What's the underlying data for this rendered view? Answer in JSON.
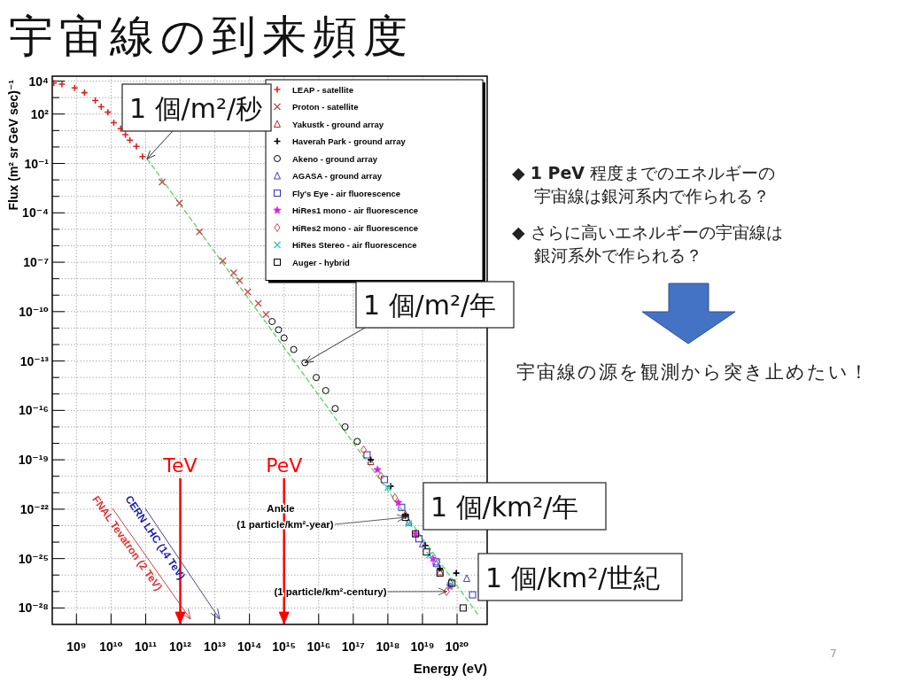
{
  "chart_data": {
    "type": "scatter",
    "title": "宇宙線の到来頻度",
    "xlabel": "Energy (eV)",
    "ylabel": "Flux (m² sr GeV sec)⁻¹",
    "log": "xy",
    "grid": true,
    "legend": "top right",
    "xlim": [
      200000000.0,
      7.4e+20
    ],
    "ylim": [
      1e-29,
      20000.0
    ],
    "xticks": [
      {
        "value": 1000000000.0,
        "label": "10⁹"
      },
      {
        "value": 10000000000.0,
        "label": "10¹⁰"
      },
      {
        "value": 100000000000.0,
        "label": "10¹¹"
      },
      {
        "value": 1000000000000.0,
        "label": "10¹²"
      },
      {
        "value": 10000000000000.0,
        "label": "10¹³"
      },
      {
        "value": 100000000000000.0,
        "label": "10¹⁴"
      },
      {
        "value": 1000000000000000.0,
        "label": "10¹⁵"
      },
      {
        "value": 1e+16,
        "label": "10¹⁶"
      },
      {
        "value": 1e+17,
        "label": "10¹⁷"
      },
      {
        "value": 1e+18,
        "label": "10¹⁸"
      },
      {
        "value": 1e+19,
        "label": "10¹⁹"
      },
      {
        "value": 1e+20,
        "label": "10²⁰"
      }
    ],
    "yticks": [
      {
        "value": 10000.0,
        "label": "10⁴"
      },
      {
        "value": 1000.0,
        "label": null
      },
      {
        "value": 100.0,
        "label": "10²"
      },
      {
        "value": 10.0,
        "label": null
      },
      {
        "value": 1,
        "label": null
      },
      {
        "value": 0.1,
        "label": "10⁻¹"
      },
      {
        "value": 0.01,
        "label": null
      },
      {
        "value": 0.001,
        "label": null
      },
      {
        "value": 0.0001,
        "label": "10⁻⁴"
      },
      {
        "value": 1e-05,
        "label": null
      },
      {
        "value": 1e-06,
        "label": null
      },
      {
        "value": 1e-07,
        "label": "10⁻⁷"
      },
      {
        "value": 1e-08,
        "label": null
      },
      {
        "value": 1e-09,
        "label": null
      },
      {
        "value": 1e-10,
        "label": "10⁻¹⁰"
      },
      {
        "value": 1e-11,
        "label": null
      },
      {
        "value": 1e-12,
        "label": null
      },
      {
        "value": 1e-13,
        "label": "10⁻¹³"
      },
      {
        "value": 1e-14,
        "label": null
      },
      {
        "value": 1e-15,
        "label": null
      },
      {
        "value": 1e-16,
        "label": "10⁻¹⁶"
      },
      {
        "value": 1e-17,
        "label": null
      },
      {
        "value": 1e-18,
        "label": null
      },
      {
        "value": 1e-19,
        "label": "10⁻¹⁹"
      },
      {
        "value": 1e-20,
        "label": null
      },
      {
        "value": 1e-21,
        "label": null
      },
      {
        "value": 1e-22,
        "label": "10⁻²²"
      },
      {
        "value": 1e-23,
        "label": null
      },
      {
        "value": 1e-24,
        "label": null
      },
      {
        "value": 1e-25,
        "label": "10⁻²⁵"
      },
      {
        "value": 1e-26,
        "label": null
      },
      {
        "value": 1e-27,
        "label": null
      },
      {
        "value": 1e-28,
        "label": "10⁻²⁸"
      }
    ],
    "series": [
      {
        "type": "line",
        "color": "#66cc66",
        "line_style": "dashed",
        "marker": "none",
        "x": [
          110000000000.0,
          4e+20
        ],
        "values": [
          0.19,
          4e-29
        ]
      },
      {
        "name": "LEAP - satellite",
        "color": "#e02020",
        "marker": "plus",
        "x": [
          220000000.0,
          380000000.0,
          890000000.0,
          1700000000.0,
          3500000000.0,
          5200000000.0,
          8100000000.0,
          12000000000.0,
          19000000000.0,
          26000000000.0,
          35000000000.0,
          54000000000.0,
          81000000000.0
        ],
        "values": [
          7600,
          6600,
          3900,
          2000,
          660,
          280,
          130,
          30,
          13,
          5.6,
          2.6,
          1.1,
          0.26
        ]
      },
      {
        "name": "Proton - satellite",
        "color": "#c05050",
        "marker": "cross",
        "x": [
          300000000000.0,
          950000000000.0,
          3600000000000.0,
          17000000000000.0,
          35000000000000.0,
          52000000000000.0,
          89000000000000.0,
          180000000000000.0,
          300000000000000.0
        ],
        "values": [
          0.0074,
          0.00039,
          7.1e-06,
          1.2e-07,
          2.3e-08,
          7.6e-09,
          1.6e-09,
          3.2e-10,
          6.8e-11
        ]
      },
      {
        "name": "Yakustk - ground array",
        "color": "#a03030",
        "marker": "triangle",
        "x": [
          3.2e+17,
          3.2e+18,
          3.2e+19
        ],
        "values": [
          7.9e-20,
          5e-23,
          1.6e-26
        ]
      },
      {
        "name": "Haverah Park - ground array",
        "color": "#000000",
        "marker": "plus",
        "x": [
          3.2e+17,
          1.2e+18,
          3.2e+18,
          1.2e+19,
          3.2e+19,
          9.5e+19
        ],
        "values": [
          1e-19,
          2.5e-21,
          4e-23,
          6.3e-25,
          2.5e-26,
          1.3e-26
        ]
      },
      {
        "name": "Akeno - ground array",
        "color": "#000000",
        "marker": "circle",
        "x": [
          450000000000000.0,
          690000000000000.0,
          1000000000000000.0,
          1900000000000000.0,
          4000000000000000.0,
          8500000000000000.0,
          1.6e+16,
          3e+16,
          5.8e+16,
          1.3e+17
        ],
        "values": [
          2.5e-11,
          7.9e-12,
          2.5e-12,
          5e-13,
          7.9e-14,
          1e-14,
          1.6e-15,
          1.3e-16,
          1e-17,
          1.3e-18
        ]
      },
      {
        "name": "AGASA - ground array",
        "color": "#4040b0",
        "marker": "triangle",
        "x": [
          4e+18,
          1e+19,
          2.5e+19,
          6.3e+19,
          1.9e+20
        ],
        "values": [
          1.6e-23,
          7.9e-25,
          5e-26,
          4e-27,
          6.3e-27
        ]
      },
      {
        "name": "Fly's Eye - air fluorescence",
        "color": "#3030c0",
        "marker": "square",
        "x": [
          2.5e+17,
          7.9e+17,
          2.5e+18,
          7.9e+18,
          2.5e+19,
          2.8e+20
        ],
        "values": [
          2e-19,
          6.3e-21,
          1.3e-22,
          1.6e-24,
          6.3e-26,
          6.3e-28
        ]
      },
      {
        "name": "HiRes1 mono - air fluorescence",
        "color": "#e020e0",
        "marker": "star",
        "x": [
          5e+17,
          2e+18,
          6.3e+18,
          2e+19,
          6.3e+19
        ],
        "values": [
          2.5e-20,
          2.5e-22,
          3.2e-24,
          1e-25,
          2e-27
        ]
      },
      {
        "name": "HiRes2 mono - air fluorescence",
        "color": "#d04040",
        "marker": "diamond",
        "x": [
          2e+17,
          6.3e+17,
          1.6e+18,
          5e+19
        ],
        "values": [
          4e-19,
          1e-20,
          5e-22,
          1e-27
        ]
      },
      {
        "name": "HiRes Stereo - air fluorescence",
        "color": "#30c8c8",
        "marker": "cross",
        "x": [
          1e+18,
          4e+18,
          1.6e+19,
          6.3e+19
        ],
        "values": [
          2e-21,
          1.3e-23,
          1.6e-25,
          2.5e-27
        ]
      },
      {
        "name": "Auger - hybrid",
        "color": "#000000",
        "marker": "square",
        "x": [
          3.2e+18,
          6.3e+18,
          1.3e+19,
          3.2e+19,
          7.1e+19,
          1.5e+20
        ],
        "values": [
          3.2e-23,
          3.2e-24,
          2.5e-25,
          1.3e-26,
          3.2e-27,
          1e-28
        ]
      }
    ],
    "ref_lines": [
      {
        "axis": "x",
        "value": 1000000000000.0,
        "label": "TeV",
        "color": "#ff0000"
      },
      {
        "axis": "x",
        "value": 1000000000000000.0,
        "label": "PeV",
        "color": "#ff0000"
      }
    ],
    "annotations": [
      {
        "text": "1 個/m²/秒",
        "x": 110000000000.0,
        "y": 0.19
      },
      {
        "text": "1 個/m²/年",
        "x": 4000000000000000.0,
        "y": 7.9e-14
      },
      "1 個/km²/年",
      "1 個/km²/世紀",
      "Ankle",
      {
        "text": "(1 particle/km²-year)",
        "x": 3.2e+18,
        "y": 3.2e-23
      },
      {
        "text": "(1 particle/km²-century)",
        "x": 5e+19,
        "y": 1e-27
      },
      "FNAL Tevatron (2 TeV)",
      "CERN LHC (14 TeV)",
      "◆ **1 PeV** 程度までのエネルギーの宇宙線は銀河系内で作られる？",
      "◆ さらに高いエネルギーの宇宙線は銀河系外で作られる？",
      "宇宙線の源を観測から突き止めたい！",
      "7"
    ]
  }
}
